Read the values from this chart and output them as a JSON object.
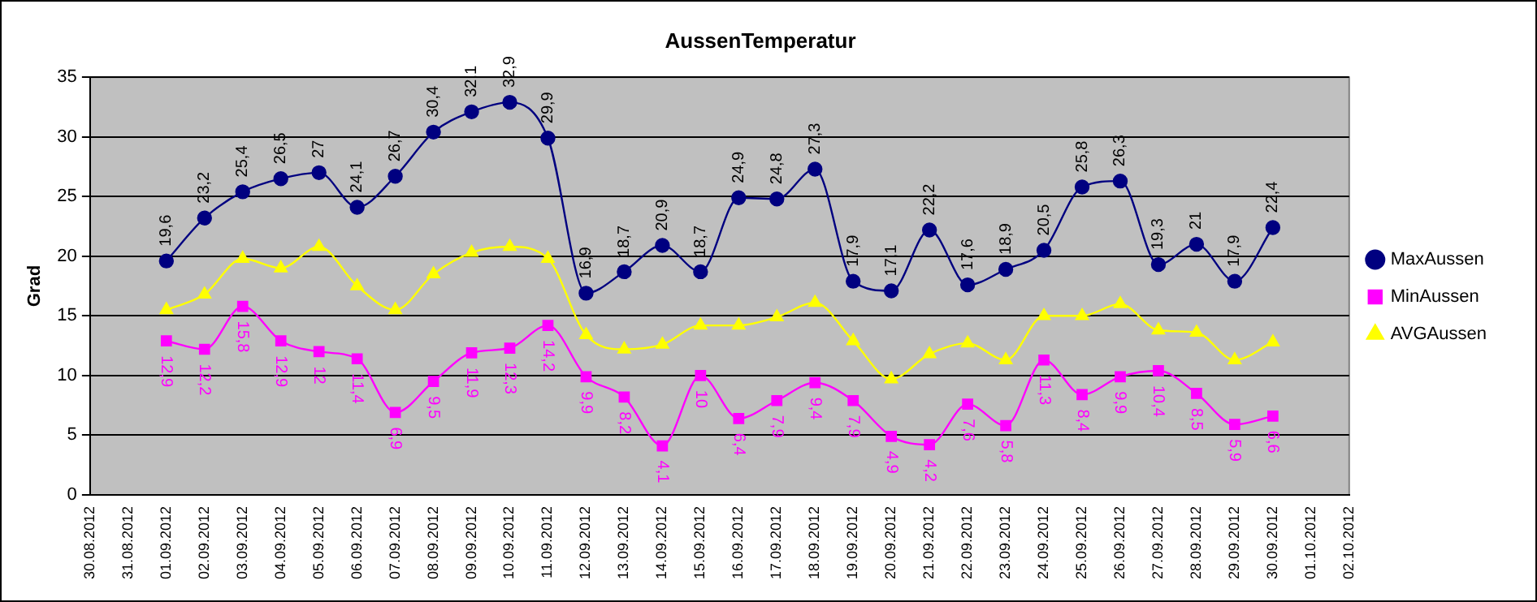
{
  "chart_data": {
    "type": "line",
    "title": "AussenTemperatur",
    "ylabel": "Grad",
    "categories": [
      "30.08.2012",
      "31.08.2012",
      "01.09.2012",
      "02.09.2012",
      "03.09.2012",
      "04.09.2012",
      "05.09.2012",
      "06.09.2012",
      "07.09.2012",
      "08.09.2012",
      "09.09.2012",
      "10.09.2012",
      "11.09.2012",
      "12.09.2012",
      "13.09.2012",
      "14.09.2012",
      "15.09.2012",
      "16.09.2012",
      "17.09.2012",
      "18.09.2012",
      "19.09.2012",
      "20.09.2012",
      "21.09.2012",
      "22.09.2012",
      "23.09.2012",
      "24.09.2012",
      "25.09.2012",
      "26.09.2012",
      "27.09.2012",
      "28.09.2012",
      "29.09.2012",
      "30.09.2012",
      "01.10.2012",
      "02.10.2012"
    ],
    "series": [
      {
        "name": "MaxAussen",
        "color": "#000080",
        "marker": "circle",
        "values": [
          null,
          null,
          19.6,
          23.2,
          25.4,
          26.5,
          27,
          24.1,
          26.7,
          30.4,
          32.1,
          32.9,
          29.9,
          16.9,
          18.7,
          20.9,
          18.7,
          24.9,
          24.8,
          27.3,
          17.9,
          17.1,
          22.2,
          17.6,
          18.9,
          20.5,
          25.8,
          26.3,
          19.3,
          21,
          17.9,
          22.4,
          null,
          null
        ],
        "value_labels": [
          null,
          null,
          "19,6",
          "23,2",
          "25,4",
          "26,5",
          "27",
          "24,1",
          "26,7",
          "30,4",
          "32,1",
          "32,9",
          "29,9",
          "16,9",
          "18,7",
          "20,9",
          "18,7",
          "24,9",
          "24,8",
          "27,3",
          "17,9",
          "17,1",
          "22,2",
          "17,6",
          "18,9",
          "20,5",
          "25,8",
          "26,3",
          "19,3",
          "21",
          "17,9",
          "22,4",
          null,
          null
        ]
      },
      {
        "name": "MinAussen",
        "color": "#ff00ff",
        "marker": "square",
        "values": [
          null,
          null,
          12.9,
          12.2,
          15.8,
          12.9,
          12,
          11.4,
          6.9,
          9.5,
          11.9,
          12.3,
          14.2,
          9.9,
          8.2,
          4.1,
          10,
          6.4,
          7.9,
          9.4,
          7.9,
          4.9,
          4.2,
          7.6,
          5.8,
          11.3,
          8.4,
          9.9,
          10.4,
          8.5,
          5.9,
          6.6,
          null,
          null
        ],
        "value_labels": [
          null,
          null,
          "12,9",
          "12,2",
          "15,8",
          "12,9",
          "12",
          "11,4",
          "6,9",
          "9,5",
          "11,9",
          "12,3",
          "14,2",
          "9,9",
          "8,2",
          "4,1",
          "10",
          "6,4",
          "7,9",
          "9,4",
          "7,9",
          "4,9",
          "4,2",
          "7,6",
          "5,8",
          "11,3",
          "8,4",
          "9,9",
          "10,4",
          "8,5",
          "5,9",
          "6,6",
          null,
          null
        ]
      },
      {
        "name": "AVGAussen",
        "color": "#ffff00",
        "marker": "triangle",
        "values": [
          null,
          null,
          15.5,
          16.8,
          19.8,
          19.0,
          20.8,
          17.5,
          15.5,
          18.5,
          20.3,
          20.8,
          19.8,
          13.4,
          12.2,
          12.6,
          14.2,
          14.2,
          14.9,
          16.1,
          12.9,
          9.7,
          11.8,
          12.7,
          11.3,
          15.0,
          15.0,
          16.0,
          13.8,
          13.6,
          11.3,
          12.8,
          null,
          null
        ]
      }
    ],
    "ylim": [
      0,
      35
    ],
    "yticks": [
      0,
      5,
      10,
      15,
      20,
      25,
      30,
      35
    ],
    "grid": "y",
    "legend": "right"
  }
}
